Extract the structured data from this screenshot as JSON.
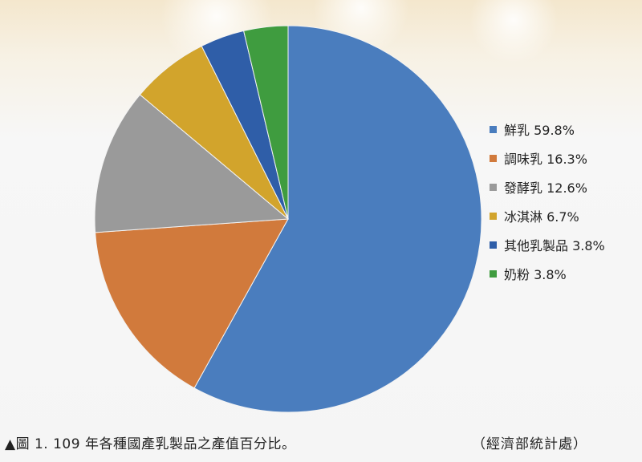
{
  "chart_data": {
    "type": "pie",
    "categories": [
      "鮮乳",
      "調味乳",
      "發酵乳",
      "冰淇淋",
      "其他乳製品",
      "奶粉"
    ],
    "values": [
      59.8,
      16.3,
      12.6,
      6.7,
      3.8,
      3.8
    ],
    "legend_labels": [
      "鮮乳 59.8%",
      "調味乳 16.3%",
      "發酵乳 12.6%",
      "冰淇淋 6.7%",
      "其他乳製品 3.8%",
      "奶粉 3.8%"
    ],
    "colors": [
      "#4a7dbe",
      "#d17a3c",
      "#9a9a9a",
      "#d2a42c",
      "#2f5ea8",
      "#3f9c3f"
    ],
    "legend_position": "right",
    "start_angle": "top, clockwise"
  },
  "caption": "▲圖 1. 109 年各種國產乳製品之產值百分比。",
  "source": "（經濟部統計處）"
}
